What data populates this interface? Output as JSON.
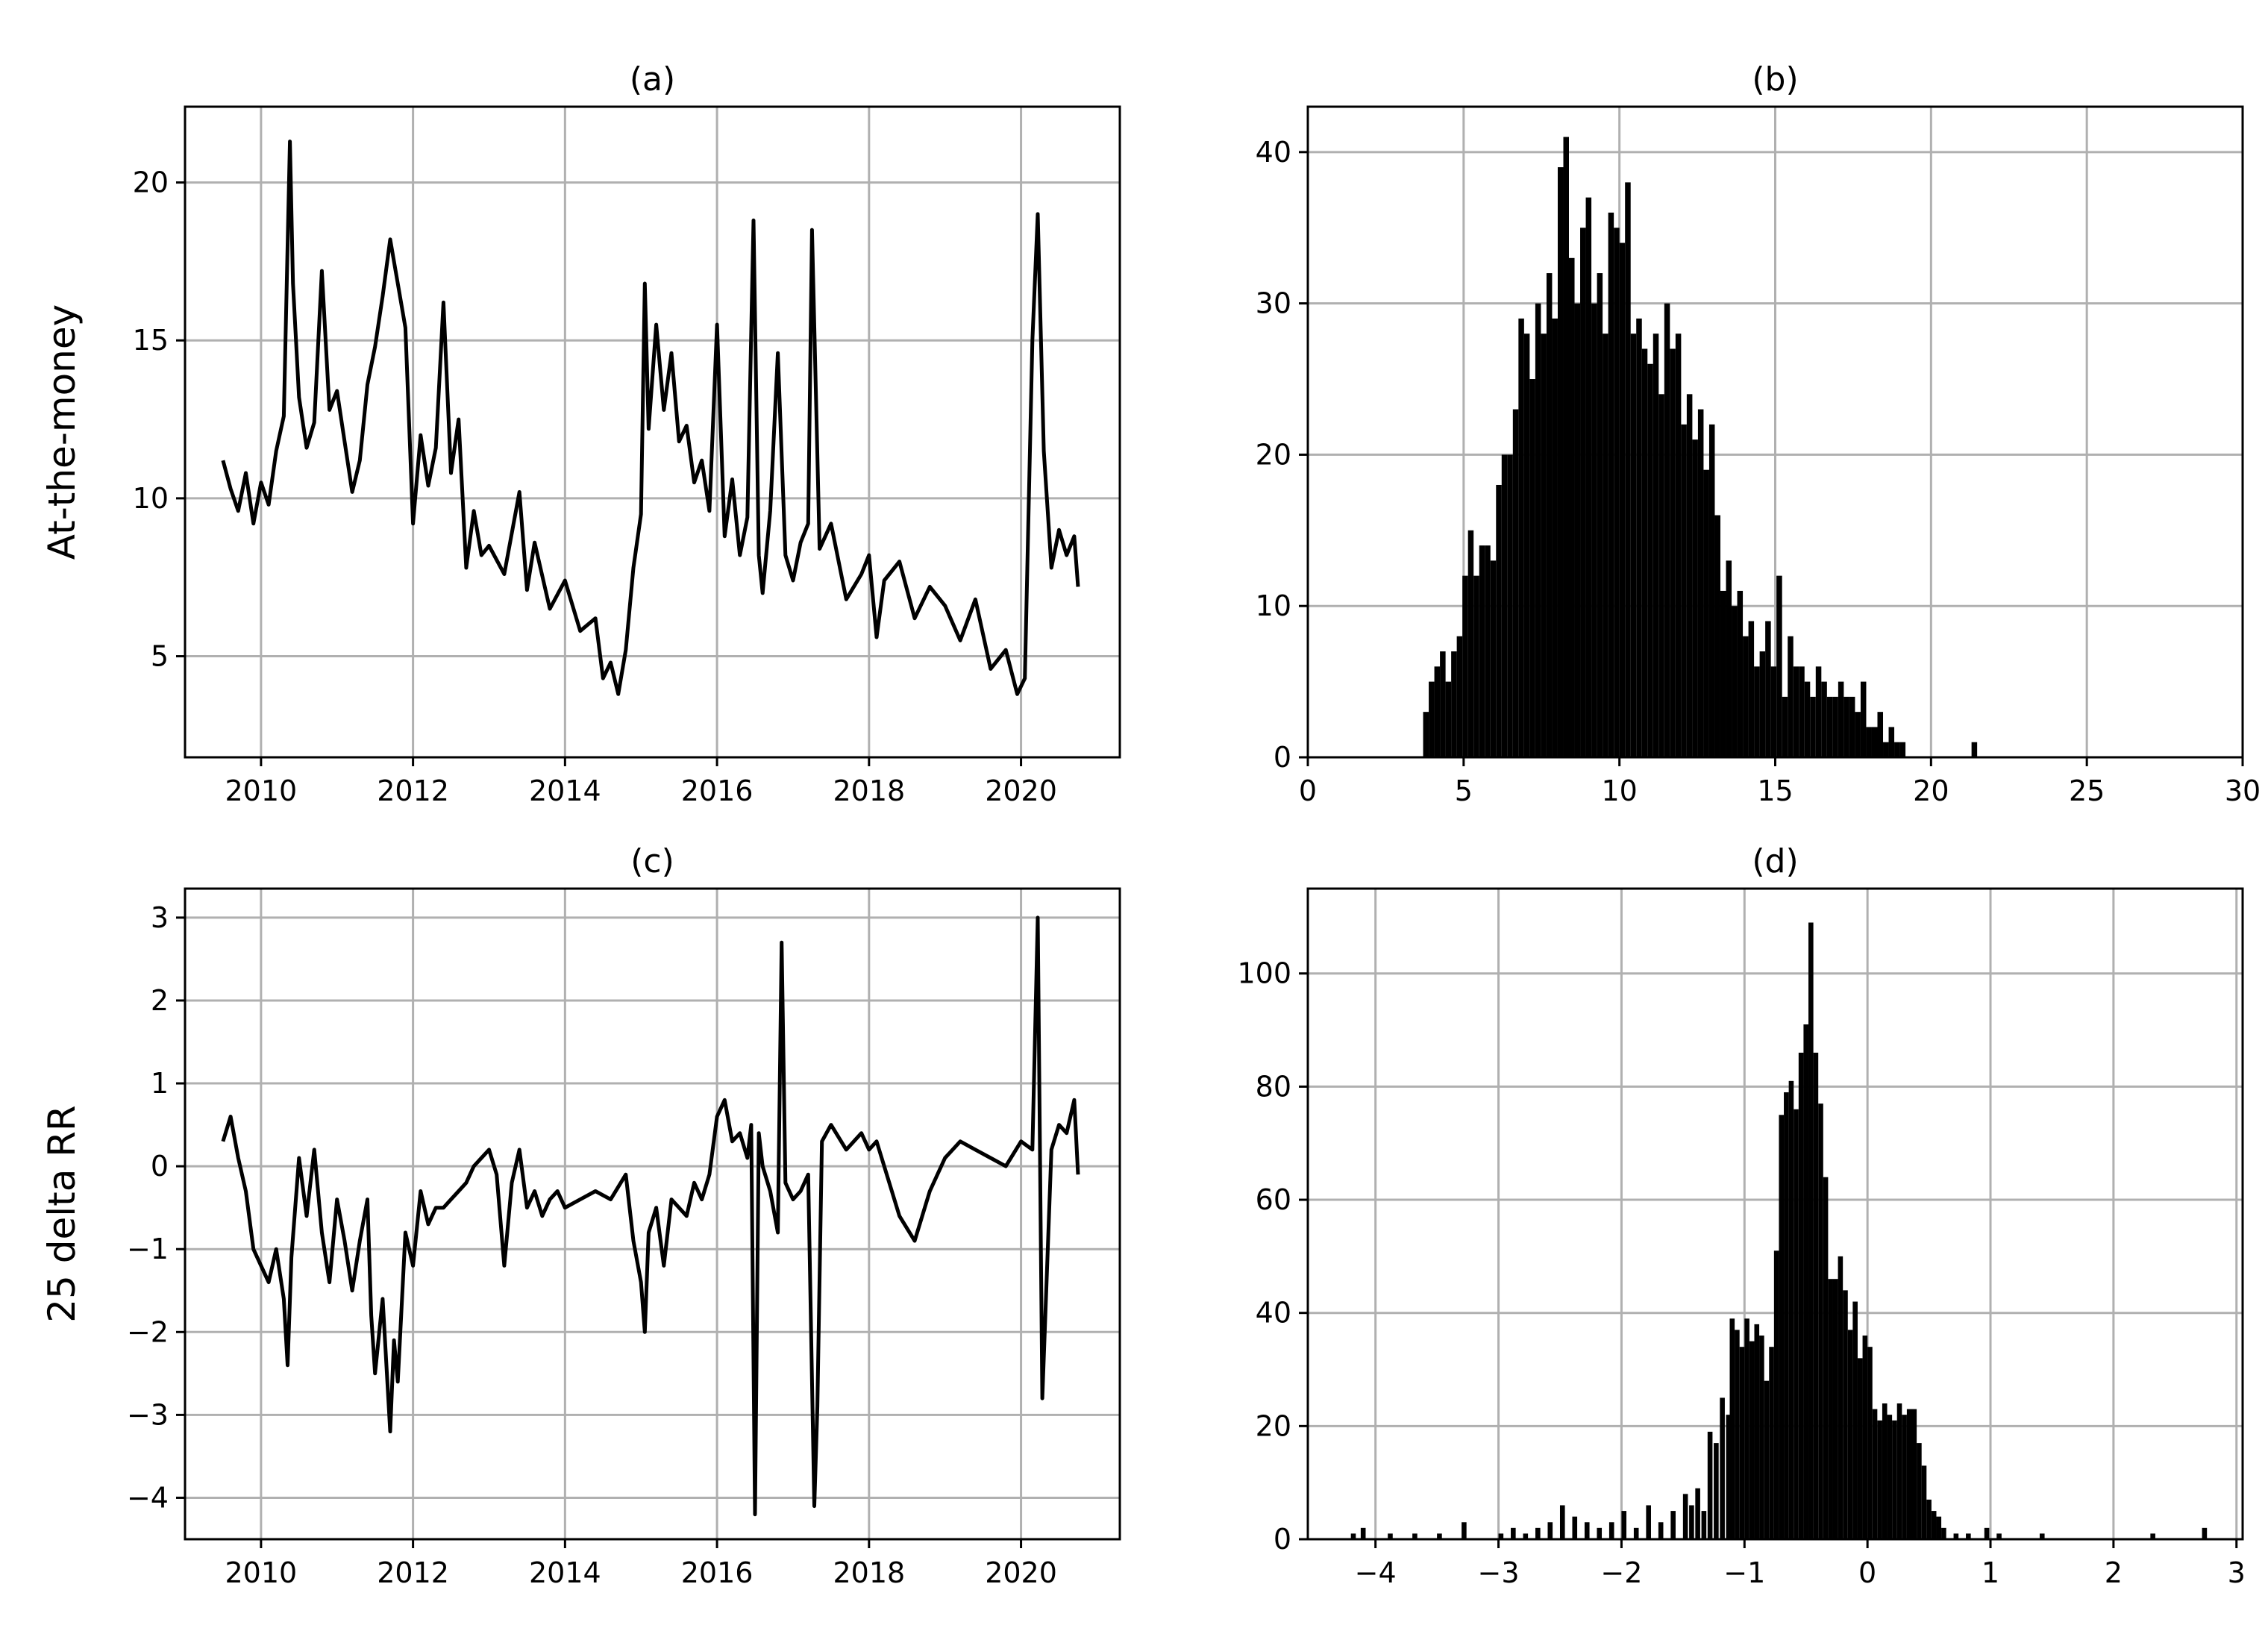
{
  "figure": {
    "background": "#ffffff"
  },
  "chart_data": [
    {
      "id": "a",
      "type": "line",
      "title": "(a)",
      "ylabel": "At-the-money",
      "xlabel": "",
      "xlim": [
        2009.0,
        2021.3
      ],
      "ylim": [
        1.8,
        22.4
      ],
      "grid": true,
      "xticks": [
        2010,
        2012,
        2014,
        2016,
        2018,
        2020
      ],
      "xticklabels": [
        "2010",
        "2012",
        "2014",
        "2016",
        "2018",
        "2020"
      ],
      "yticks": [
        5,
        10,
        15,
        20
      ],
      "yticklabels": [
        "5",
        "10",
        "15",
        "20"
      ],
      "color": "#000000",
      "series": [
        {
          "x": [
            2009.5,
            2009.6,
            2009.7,
            2009.8,
            2009.9,
            2010.0,
            2010.1,
            2010.2,
            2010.3,
            2010.38,
            2010.42,
            2010.5,
            2010.6,
            2010.7,
            2010.8,
            2010.9,
            2011.0,
            2011.1,
            2011.2,
            2011.3,
            2011.4,
            2011.5,
            2011.6,
            2011.7,
            2011.8,
            2011.9,
            2012.0,
            2012.1,
            2012.2,
            2012.3,
            2012.4,
            2012.5,
            2012.6,
            2012.7,
            2012.8,
            2012.9,
            2013.0,
            2013.2,
            2013.4,
            2013.5,
            2013.6,
            2013.8,
            2014.0,
            2014.2,
            2014.4,
            2014.5,
            2014.6,
            2014.7,
            2014.8,
            2014.9,
            2015.0,
            2015.05,
            2015.1,
            2015.2,
            2015.3,
            2015.4,
            2015.5,
            2015.6,
            2015.7,
            2015.8,
            2015.9,
            2016.0,
            2016.1,
            2016.2,
            2016.3,
            2016.4,
            2016.48,
            2016.55,
            2016.6,
            2016.7,
            2016.8,
            2016.9,
            2017.0,
            2017.1,
            2017.2,
            2017.25,
            2017.35,
            2017.5,
            2017.7,
            2017.9,
            2018.0,
            2018.1,
            2018.2,
            2018.4,
            2018.6,
            2018.8,
            2019.0,
            2019.2,
            2019.4,
            2019.6,
            2019.8,
            2019.95,
            2020.05,
            2020.15,
            2020.22,
            2020.3,
            2020.4,
            2020.5,
            2020.6,
            2020.7,
            2020.75
          ],
          "values": [
            11.2,
            10.3,
            9.6,
            10.8,
            9.2,
            10.5,
            9.8,
            11.5,
            12.6,
            21.3,
            16.8,
            13.2,
            11.6,
            12.4,
            17.2,
            12.8,
            13.4,
            11.8,
            10.2,
            11.2,
            13.6,
            14.8,
            16.4,
            18.2,
            16.8,
            15.4,
            9.2,
            12.0,
            10.4,
            11.6,
            16.2,
            10.8,
            12.5,
            7.8,
            9.6,
            8.2,
            8.5,
            7.6,
            10.2,
            7.1,
            8.6,
            6.5,
            7.4,
            5.8,
            6.2,
            4.3,
            4.8,
            3.8,
            5.2,
            7.8,
            9.5,
            16.8,
            12.2,
            15.5,
            12.8,
            14.6,
            11.8,
            12.3,
            10.5,
            11.2,
            9.6,
            15.5,
            8.8,
            10.6,
            8.2,
            9.4,
            18.8,
            8.2,
            7.0,
            9.6,
            14.6,
            8.2,
            7.4,
            8.6,
            9.2,
            18.5,
            8.4,
            9.2,
            6.8,
            7.6,
            8.2,
            5.6,
            7.4,
            8.0,
            6.2,
            7.2,
            6.6,
            5.5,
            6.8,
            4.6,
            5.2,
            3.8,
            4.3,
            15.0,
            19.0,
            11.5,
            7.8,
            9.0,
            8.2,
            8.8,
            7.2
          ]
        }
      ]
    },
    {
      "id": "b",
      "type": "bar",
      "title": "(b)",
      "ylabel": "",
      "xlabel": "",
      "xlim": [
        0,
        30
      ],
      "ylim": [
        0,
        43
      ],
      "grid": true,
      "xticks": [
        0,
        5,
        10,
        15,
        20,
        25,
        30
      ],
      "xticklabels": [
        "0",
        "5",
        "10",
        "15",
        "20",
        "25",
        "30"
      ],
      "yticks": [
        0,
        10,
        20,
        30,
        40
      ],
      "yticklabels": [
        "0",
        "10",
        "20",
        "30",
        "40"
      ],
      "bin_width": 0.18,
      "color": "#000000",
      "bins": [
        3.7,
        3.88,
        4.06,
        4.24,
        4.42,
        4.6,
        4.78,
        4.96,
        5.14,
        5.32,
        5.5,
        5.68,
        5.86,
        6.04,
        6.22,
        6.4,
        6.58,
        6.76,
        6.94,
        7.12,
        7.3,
        7.48,
        7.66,
        7.84,
        8.02,
        8.2,
        8.38,
        8.56,
        8.74,
        8.92,
        9.1,
        9.28,
        9.46,
        9.64,
        9.82,
        10.0,
        10.18,
        10.36,
        10.54,
        10.72,
        10.9,
        11.08,
        11.26,
        11.44,
        11.62,
        11.8,
        11.98,
        12.16,
        12.34,
        12.52,
        12.7,
        12.88,
        13.06,
        13.24,
        13.42,
        13.6,
        13.78,
        13.96,
        14.14,
        14.32,
        14.5,
        14.68,
        14.86,
        15.04,
        15.22,
        15.4,
        15.58,
        15.76,
        15.94,
        16.12,
        16.3,
        16.48,
        16.66,
        16.84,
        17.02,
        17.2,
        17.38,
        17.56,
        17.74,
        17.92,
        18.1,
        18.28,
        18.46,
        18.64,
        18.82,
        19.0,
        21.3
      ],
      "values": [
        3,
        5,
        6,
        7,
        5,
        7,
        8,
        12,
        15,
        12,
        14,
        14,
        13,
        18,
        20,
        20,
        23,
        29,
        28,
        25,
        30,
        28,
        32,
        29,
        39,
        41,
        33,
        30,
        35,
        37,
        30,
        32,
        28,
        36,
        35,
        34,
        38,
        28,
        29,
        27,
        26,
        28,
        24,
        30,
        27,
        28,
        22,
        24,
        21,
        23,
        19,
        22,
        16,
        11,
        13,
        10,
        11,
        8,
        9,
        6,
        7,
        9,
        6,
        12,
        4,
        8,
        6,
        6,
        5,
        4,
        6,
        5,
        4,
        4,
        5,
        4,
        4,
        3,
        5,
        2,
        2,
        3,
        1,
        2,
        1,
        1,
        1
      ]
    },
    {
      "id": "c",
      "type": "line",
      "title": "(c)",
      "ylabel": "25 delta RR",
      "xlabel": "",
      "xlim": [
        2009.0,
        2021.3
      ],
      "ylim": [
        -4.5,
        3.35
      ],
      "grid": true,
      "xticks": [
        2010,
        2012,
        2014,
        2016,
        2018,
        2020
      ],
      "xticklabels": [
        "2010",
        "2012",
        "2014",
        "2016",
        "2018",
        "2020"
      ],
      "yticks": [
        -4,
        -3,
        -2,
        -1,
        0,
        1,
        2,
        3
      ],
      "yticklabels": [
        "−4",
        "−3",
        "−2",
        "−1",
        "0",
        "1",
        "2",
        "3"
      ],
      "color": "#000000",
      "series": [
        {
          "x": [
            2009.5,
            2009.6,
            2009.7,
            2009.8,
            2009.9,
            2010.0,
            2010.1,
            2010.2,
            2010.3,
            2010.35,
            2010.4,
            2010.5,
            2010.6,
            2010.7,
            2010.8,
            2010.9,
            2011.0,
            2011.1,
            2011.2,
            2011.3,
            2011.4,
            2011.45,
            2011.5,
            2011.6,
            2011.7,
            2011.75,
            2011.8,
            2011.9,
            2012.0,
            2012.1,
            2012.2,
            2012.3,
            2012.4,
            2012.5,
            2012.6,
            2012.7,
            2012.8,
            2012.9,
            2013.0,
            2013.1,
            2013.2,
            2013.3,
            2013.4,
            2013.5,
            2013.6,
            2013.7,
            2013.8,
            2013.9,
            2014.0,
            2014.2,
            2014.4,
            2014.6,
            2014.8,
            2014.9,
            2015.0,
            2015.05,
            2015.1,
            2015.2,
            2015.3,
            2015.4,
            2015.5,
            2015.6,
            2015.7,
            2015.8,
            2015.9,
            2016.0,
            2016.1,
            2016.2,
            2016.3,
            2016.4,
            2016.45,
            2016.5,
            2016.55,
            2016.6,
            2016.7,
            2016.8,
            2016.85,
            2016.9,
            2017.0,
            2017.1,
            2017.2,
            2017.28,
            2017.32,
            2017.38,
            2017.5,
            2017.7,
            2017.9,
            2018.0,
            2018.1,
            2018.2,
            2018.4,
            2018.6,
            2018.8,
            2019.0,
            2019.2,
            2019.4,
            2019.6,
            2019.8,
            2020.0,
            2020.15,
            2020.22,
            2020.28,
            2020.4,
            2020.5,
            2020.6,
            2020.7,
            2020.75
          ],
          "values": [
            0.3,
            0.6,
            0.1,
            -0.3,
            -1.0,
            -1.2,
            -1.4,
            -1.0,
            -1.6,
            -2.4,
            -1.1,
            0.1,
            -0.6,
            0.2,
            -0.8,
            -1.4,
            -0.4,
            -0.9,
            -1.5,
            -0.9,
            -0.4,
            -1.8,
            -2.5,
            -1.6,
            -3.2,
            -2.1,
            -2.6,
            -0.8,
            -1.2,
            -0.3,
            -0.7,
            -0.5,
            -0.5,
            -0.4,
            -0.3,
            -0.2,
            0.0,
            0.1,
            0.2,
            -0.1,
            -1.2,
            -0.2,
            0.2,
            -0.5,
            -0.3,
            -0.6,
            -0.4,
            -0.3,
            -0.5,
            -0.4,
            -0.3,
            -0.4,
            -0.1,
            -0.9,
            -1.4,
            -2.0,
            -0.8,
            -0.5,
            -1.2,
            -0.4,
            -0.5,
            -0.6,
            -0.2,
            -0.4,
            -0.1,
            0.6,
            0.8,
            0.3,
            0.4,
            0.1,
            0.5,
            -4.2,
            0.4,
            0.0,
            -0.3,
            -0.8,
            2.7,
            -0.2,
            -0.4,
            -0.3,
            -0.1,
            -4.1,
            -2.9,
            0.3,
            0.5,
            0.2,
            0.4,
            0.2,
            0.3,
            0.0,
            -0.6,
            -0.9,
            -0.3,
            0.1,
            0.3,
            0.2,
            0.1,
            0.0,
            0.3,
            0.2,
            3.0,
            -2.8,
            0.2,
            0.5,
            0.4,
            0.8,
            -0.1
          ]
        }
      ]
    },
    {
      "id": "d",
      "type": "bar",
      "title": "(d)",
      "ylabel": "",
      "xlabel": "",
      "xlim": [
        -4.55,
        3.05
      ],
      "ylim": [
        0,
        115
      ],
      "grid": true,
      "xticks": [
        -4,
        -3,
        -2,
        -1,
        0,
        1,
        2,
        3
      ],
      "xticklabels": [
        "−4",
        "−3",
        "−2",
        "−1",
        "0",
        "1",
        "2",
        "3"
      ],
      "yticks": [
        0,
        20,
        40,
        60,
        80,
        100
      ],
      "yticklabels": [
        "0",
        "20",
        "40",
        "60",
        "80",
        "100"
      ],
      "bin_width": 0.04,
      "color": "#000000",
      "bins": [
        -4.2,
        -4.12,
        -3.9,
        -3.7,
        -3.5,
        -3.3,
        -3.0,
        -2.9,
        -2.8,
        -2.7,
        -2.6,
        -2.5,
        -2.4,
        -2.3,
        -2.2,
        -2.1,
        -2.0,
        -1.9,
        -1.8,
        -1.7,
        -1.6,
        -1.5,
        -1.45,
        -1.4,
        -1.35,
        -1.3,
        -1.25,
        -1.2,
        -1.15,
        -1.12,
        -1.08,
        -1.04,
        -1.0,
        -0.96,
        -0.92,
        -0.88,
        -0.84,
        -0.8,
        -0.76,
        -0.72,
        -0.68,
        -0.64,
        -0.6,
        -0.56,
        -0.52,
        -0.48,
        -0.44,
        -0.4,
        -0.36,
        -0.32,
        -0.28,
        -0.24,
        -0.2,
        -0.16,
        -0.12,
        -0.08,
        -0.04,
        0.0,
        0.04,
        0.08,
        0.12,
        0.16,
        0.2,
        0.24,
        0.28,
        0.32,
        0.36,
        0.4,
        0.44,
        0.48,
        0.52,
        0.56,
        0.6,
        0.7,
        0.8,
        0.95,
        1.05,
        1.4,
        2.3,
        2.72
      ],
      "values": [
        1,
        2,
        1,
        1,
        1,
        3,
        1,
        2,
        1,
        2,
        3,
        6,
        4,
        3,
        2,
        3,
        5,
        2,
        6,
        3,
        5,
        8,
        6,
        9,
        5,
        19,
        17,
        25,
        22,
        39,
        37,
        34,
        39,
        35,
        38,
        36,
        28,
        34,
        51,
        75,
        79,
        81,
        76,
        86,
        91,
        109,
        86,
        77,
        64,
        46,
        46,
        50,
        44,
        37,
        42,
        32,
        36,
        34,
        23,
        21,
        24,
        22,
        21,
        24,
        22,
        23,
        23,
        17,
        13,
        7,
        5,
        4,
        2,
        1,
        1,
        2,
        1,
        1,
        1,
        2
      ]
    }
  ]
}
